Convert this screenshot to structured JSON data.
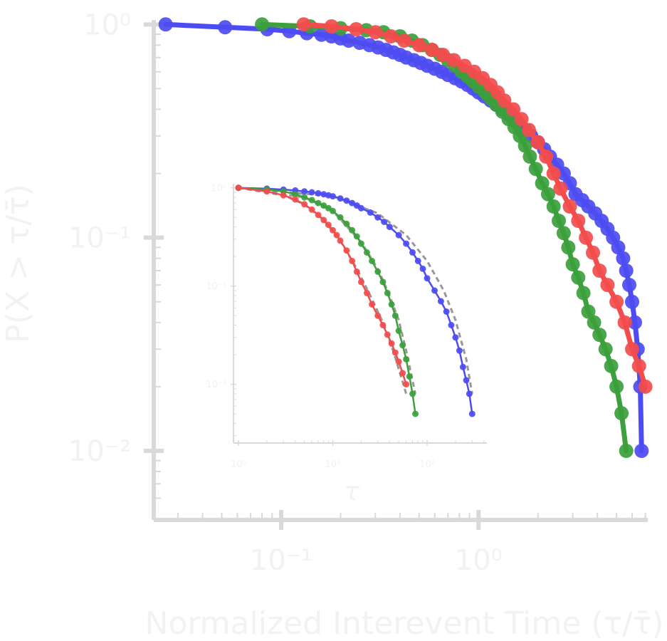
{
  "chart_data": [
    {
      "type": "line",
      "scale": "log-log",
      "xlabel": "Normalized Interevent Time (τ/τ̄)",
      "ylabel": "P(X > τ/τ̄)",
      "x_ticks": [
        "10⁻¹",
        "10⁰"
      ],
      "y_ticks": [
        "10⁰",
        "10⁻¹",
        "10⁻²"
      ],
      "xlim": [
        0.025,
        7.2
      ],
      "ylim": [
        0.0052,
        1.05
      ],
      "grid": false,
      "series": [
        {
          "color": "#4c4cf2",
          "x": [
            0.026,
            0.052,
            0.085,
            0.11,
            0.135,
            0.16,
            0.18,
            0.2,
            0.22,
            0.25,
            0.28,
            0.31,
            0.34,
            0.37,
            0.4,
            0.43,
            0.47,
            0.51,
            0.55,
            0.6,
            0.65,
            0.7,
            0.76,
            0.82,
            0.88,
            0.94,
            1.0,
            1.07,
            1.15,
            1.23,
            1.32,
            1.41,
            1.5,
            1.6,
            1.72,
            1.85,
            2.0,
            2.15,
            2.3,
            2.5,
            2.7,
            2.9,
            3.1,
            3.35,
            3.6,
            3.9,
            4.2,
            4.5,
            4.8,
            5.1,
            5.4,
            5.6,
            5.8,
            6.0,
            6.2,
            6.4,
            6.6,
            6.7
          ],
          "y": [
            1.0,
            0.97,
            0.95,
            0.93,
            0.91,
            0.895,
            0.88,
            0.86,
            0.84,
            0.82,
            0.8,
            0.78,
            0.76,
            0.74,
            0.72,
            0.7,
            0.68,
            0.66,
            0.64,
            0.62,
            0.6,
            0.58,
            0.56,
            0.54,
            0.52,
            0.5,
            0.48,
            0.46,
            0.44,
            0.42,
            0.4,
            0.38,
            0.36,
            0.34,
            0.32,
            0.3,
            0.28,
            0.26,
            0.24,
            0.22,
            0.2,
            0.18,
            0.16,
            0.15,
            0.14,
            0.13,
            0.12,
            0.11,
            0.1,
            0.09,
            0.08,
            0.07,
            0.06,
            0.05,
            0.04,
            0.03,
            0.02,
            0.01
          ]
        },
        {
          "color": "#3ca03c",
          "x": [
            0.08,
            0.14,
            0.2,
            0.27,
            0.33,
            0.4,
            0.46,
            0.52,
            0.58,
            0.64,
            0.7,
            0.76,
            0.82,
            0.88,
            0.94,
            1.0,
            1.08,
            1.15,
            1.23,
            1.32,
            1.42,
            1.52,
            1.62,
            1.72,
            1.82,
            1.95,
            2.1,
            2.25,
            2.4,
            2.55,
            2.7,
            2.85,
            3.0,
            3.2,
            3.4,
            3.6,
            3.85,
            4.1,
            4.4,
            4.7,
            5.0,
            5.3,
            5.6
          ],
          "y": [
            1.0,
            0.98,
            0.96,
            0.94,
            0.92,
            0.88,
            0.84,
            0.8,
            0.76,
            0.72,
            0.68,
            0.64,
            0.6,
            0.57,
            0.54,
            0.51,
            0.48,
            0.45,
            0.42,
            0.39,
            0.36,
            0.33,
            0.3,
            0.27,
            0.24,
            0.21,
            0.18,
            0.16,
            0.14,
            0.12,
            0.105,
            0.09,
            0.075,
            0.065,
            0.055,
            0.045,
            0.04,
            0.035,
            0.03,
            0.025,
            0.02,
            0.015,
            0.01
          ]
        },
        {
          "color": "#f24c4c",
          "x": [
            0.13,
            0.18,
            0.24,
            0.3,
            0.36,
            0.42,
            0.5,
            0.58,
            0.66,
            0.75,
            0.85,
            0.95,
            1.05,
            1.15,
            1.25,
            1.35,
            1.5,
            1.65,
            1.8,
            2.0,
            2.2,
            2.4,
            2.6,
            2.9,
            3.2,
            3.5,
            3.8,
            4.1,
            4.5,
            5.0,
            5.5,
            6.0,
            6.5,
            7.0
          ],
          "y": [
            1.0,
            0.98,
            0.95,
            0.92,
            0.88,
            0.84,
            0.8,
            0.76,
            0.72,
            0.68,
            0.64,
            0.6,
            0.56,
            0.52,
            0.48,
            0.44,
            0.4,
            0.36,
            0.32,
            0.28,
            0.24,
            0.2,
            0.17,
            0.14,
            0.12,
            0.1,
            0.085,
            0.07,
            0.06,
            0.05,
            0.04,
            0.03,
            0.025,
            0.02
          ]
        }
      ]
    },
    {
      "type": "line",
      "scale": "log-log",
      "xlabel": "τ",
      "ylabel": "",
      "x_ticks": [
        "10⁰",
        "10¹",
        "10²"
      ],
      "y_ticks": [
        "10⁰",
        "10⁻¹",
        "10⁻²"
      ],
      "xlim": [
        0.95,
        430
      ],
      "ylim": [
        0.0027,
        1.1
      ],
      "grid": false,
      "series": [
        {
          "color": "#4c4cf2",
          "x": [
            1,
            2,
            3,
            4,
            5,
            6,
            7,
            8,
            9,
            10,
            12,
            14,
            16,
            18,
            20,
            25,
            30,
            35,
            40,
            50,
            60,
            70,
            80,
            90,
            100,
            120,
            140,
            160,
            180,
            200,
            220,
            240,
            260,
            280,
            300
          ],
          "y": [
            1.0,
            0.98,
            0.96,
            0.94,
            0.92,
            0.9,
            0.88,
            0.86,
            0.84,
            0.82,
            0.78,
            0.74,
            0.7,
            0.66,
            0.62,
            0.56,
            0.5,
            0.45,
            0.4,
            0.33,
            0.27,
            0.22,
            0.18,
            0.15,
            0.12,
            0.09,
            0.07,
            0.055,
            0.04,
            0.03,
            0.022,
            0.015,
            0.011,
            0.008,
            0.005
          ]
        },
        {
          "color": "#3ca03c",
          "x": [
            1,
            2,
            3,
            4,
            5,
            6,
            7,
            8,
            9,
            10,
            12,
            14,
            16,
            18,
            20,
            23,
            26,
            30,
            34,
            38,
            42,
            46,
            50,
            55,
            60,
            65,
            70,
            75
          ],
          "y": [
            1.0,
            0.96,
            0.92,
            0.86,
            0.8,
            0.75,
            0.7,
            0.66,
            0.62,
            0.58,
            0.5,
            0.43,
            0.37,
            0.32,
            0.27,
            0.22,
            0.18,
            0.14,
            0.11,
            0.085,
            0.065,
            0.05,
            0.035,
            0.025,
            0.018,
            0.012,
            0.008,
            0.005
          ]
        },
        {
          "color": "#f24c4c",
          "x": [
            1,
            2,
            3,
            4,
            5,
            6,
            7,
            8,
            9,
            10,
            11,
            12,
            14,
            16,
            18,
            20,
            23,
            26,
            30,
            34,
            38,
            42,
            46,
            50,
            55,
            60
          ],
          "y": [
            1.0,
            0.92,
            0.84,
            0.76,
            0.68,
            0.6,
            0.53,
            0.47,
            0.42,
            0.37,
            0.33,
            0.29,
            0.23,
            0.18,
            0.14,
            0.11,
            0.085,
            0.065,
            0.05,
            0.04,
            0.032,
            0.026,
            0.021,
            0.017,
            0.013,
            0.01
          ]
        }
      ],
      "fits": [
        {
          "color": "#8c8c8c",
          "x": [
            1,
            10,
            30,
            60,
            100,
            150,
            200,
            260,
            300
          ],
          "y": [
            1.0,
            0.82,
            0.55,
            0.33,
            0.18,
            0.09,
            0.045,
            0.018,
            0.008
          ]
        },
        {
          "color": "#8c8c8c",
          "x": [
            1,
            5,
            10,
            20,
            30,
            40,
            50,
            60,
            75
          ],
          "y": [
            1.0,
            0.8,
            0.58,
            0.28,
            0.15,
            0.08,
            0.045,
            0.022,
            0.008
          ]
        },
        {
          "color": "#8c8c8c",
          "x": [
            1,
            3,
            5,
            8,
            12,
            18,
            25,
            35,
            45,
            60
          ],
          "y": [
            1.0,
            0.84,
            0.68,
            0.47,
            0.29,
            0.15,
            0.08,
            0.04,
            0.02,
            0.008
          ]
        }
      ]
    }
  ]
}
